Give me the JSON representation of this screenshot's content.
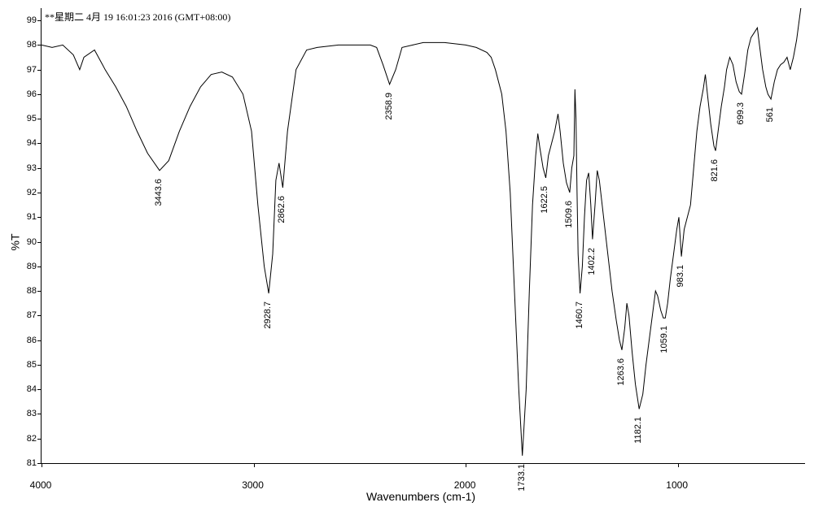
{
  "header": "**星期二 4月 19 16:01:23 2016 (GMT+08:00)",
  "ylabel": "%T",
  "xlabel": "Wavenumbers (cm-1)",
  "chart": {
    "type": "line",
    "xlim": [
      4000,
      400
    ],
    "ylim": [
      81,
      99.5
    ],
    "xticks": [
      4000,
      3000,
      2000,
      1000
    ],
    "yticks": [
      81,
      82,
      83,
      84,
      85,
      86,
      87,
      88,
      89,
      90,
      91,
      92,
      93,
      94,
      95,
      96,
      97,
      98,
      99
    ],
    "line_color": "#000000",
    "background_color": "#ffffff",
    "peaks": [
      {
        "wn": 3443.6,
        "t": 92.9
      },
      {
        "wn": 2928.7,
        "t": 87.9
      },
      {
        "wn": 2862.6,
        "t": 92.2
      },
      {
        "wn": 2358.9,
        "t": 96.4
      },
      {
        "wn": 1733.1,
        "t": 81.3
      },
      {
        "wn": 1622.5,
        "t": 92.6
      },
      {
        "wn": 1509.6,
        "t": 92.0
      },
      {
        "wn": 1460.7,
        "t": 87.9
      },
      {
        "wn": 1402.2,
        "t": 90.1
      },
      {
        "wn": 1263.6,
        "t": 85.6
      },
      {
        "wn": 1182.1,
        "t": 83.2
      },
      {
        "wn": 1059.1,
        "t": 86.9
      },
      {
        "wn": 983.1,
        "t": 89.4
      },
      {
        "wn": 821.6,
        "t": 93.7
      },
      {
        "wn": 699.3,
        "t": 96.0
      },
      {
        "wn": 561.0,
        "t": 95.8
      }
    ],
    "spectrum_points": [
      [
        4000,
        98.0
      ],
      [
        3950,
        97.9
      ],
      [
        3900,
        98.0
      ],
      [
        3850,
        97.6
      ],
      [
        3820,
        97.0
      ],
      [
        3800,
        97.5
      ],
      [
        3750,
        97.8
      ],
      [
        3700,
        97.0
      ],
      [
        3650,
        96.3
      ],
      [
        3600,
        95.5
      ],
      [
        3550,
        94.5
      ],
      [
        3500,
        93.6
      ],
      [
        3443.6,
        92.9
      ],
      [
        3400,
        93.3
      ],
      [
        3350,
        94.5
      ],
      [
        3300,
        95.5
      ],
      [
        3250,
        96.3
      ],
      [
        3200,
        96.8
      ],
      [
        3150,
        96.9
      ],
      [
        3100,
        96.7
      ],
      [
        3050,
        96.0
      ],
      [
        3010,
        94.5
      ],
      [
        2980,
        91.5
      ],
      [
        2950,
        89.0
      ],
      [
        2928.7,
        87.9
      ],
      [
        2910,
        89.5
      ],
      [
        2895,
        92.5
      ],
      [
        2880,
        93.2
      ],
      [
        2862.6,
        92.2
      ],
      [
        2840,
        94.5
      ],
      [
        2800,
        97.0
      ],
      [
        2750,
        97.8
      ],
      [
        2700,
        97.9
      ],
      [
        2600,
        98.0
      ],
      [
        2500,
        98.0
      ],
      [
        2450,
        98.0
      ],
      [
        2420,
        97.9
      ],
      [
        2390,
        97.2
      ],
      [
        2358.9,
        96.4
      ],
      [
        2330,
        97.0
      ],
      [
        2300,
        97.9
      ],
      [
        2250,
        98.0
      ],
      [
        2200,
        98.1
      ],
      [
        2100,
        98.1
      ],
      [
        2000,
        98.0
      ],
      [
        1950,
        97.9
      ],
      [
        1900,
        97.7
      ],
      [
        1880,
        97.5
      ],
      [
        1860,
        97.0
      ],
      [
        1830,
        96.0
      ],
      [
        1810,
        94.5
      ],
      [
        1790,
        92.0
      ],
      [
        1770,
        88.0
      ],
      [
        1750,
        84.0
      ],
      [
        1733.1,
        81.3
      ],
      [
        1715,
        84.0
      ],
      [
        1700,
        88.0
      ],
      [
        1685,
        91.5
      ],
      [
        1670,
        93.5
      ],
      [
        1660,
        94.4
      ],
      [
        1650,
        93.8
      ],
      [
        1635,
        93.0
      ],
      [
        1622.5,
        92.6
      ],
      [
        1610,
        93.5
      ],
      [
        1595,
        94.0
      ],
      [
        1580,
        94.5
      ],
      [
        1565,
        95.2
      ],
      [
        1555,
        94.5
      ],
      [
        1540,
        93.2
      ],
      [
        1525,
        92.4
      ],
      [
        1509.6,
        92.0
      ],
      [
        1500,
        93.0
      ],
      [
        1490,
        93.5
      ],
      [
        1485,
        96.2
      ],
      [
        1480,
        95.0
      ],
      [
        1475,
        92.0
      ],
      [
        1470,
        89.5
      ],
      [
        1460.7,
        87.9
      ],
      [
        1450,
        89.0
      ],
      [
        1440,
        91.0
      ],
      [
        1430,
        92.5
      ],
      [
        1420,
        92.8
      ],
      [
        1410,
        91.5
      ],
      [
        1402.2,
        90.1
      ],
      [
        1390,
        91.5
      ],
      [
        1380,
        92.9
      ],
      [
        1370,
        92.5
      ],
      [
        1350,
        91.0
      ],
      [
        1330,
        89.5
      ],
      [
        1310,
        88.0
      ],
      [
        1290,
        86.8
      ],
      [
        1275,
        86.0
      ],
      [
        1263.6,
        85.6
      ],
      [
        1250,
        86.5
      ],
      [
        1240,
        87.5
      ],
      [
        1230,
        87.0
      ],
      [
        1215,
        85.5
      ],
      [
        1200,
        84.2
      ],
      [
        1182.1,
        83.2
      ],
      [
        1165,
        83.8
      ],
      [
        1150,
        85.0
      ],
      [
        1135,
        86.0
      ],
      [
        1120,
        87.0
      ],
      [
        1105,
        88.0
      ],
      [
        1095,
        87.8
      ],
      [
        1080,
        87.2
      ],
      [
        1068,
        86.9
      ],
      [
        1059.1,
        86.9
      ],
      [
        1048,
        87.5
      ],
      [
        1035,
        88.5
      ],
      [
        1020,
        89.5
      ],
      [
        1005,
        90.5
      ],
      [
        995,
        91.0
      ],
      [
        983.1,
        89.4
      ],
      [
        970,
        90.5
      ],
      [
        955,
        91.0
      ],
      [
        940,
        91.5
      ],
      [
        925,
        93.0
      ],
      [
        910,
        94.5
      ],
      [
        895,
        95.5
      ],
      [
        880,
        96.2
      ],
      [
        870,
        96.8
      ],
      [
        860,
        96.0
      ],
      [
        845,
        94.8
      ],
      [
        830,
        93.9
      ],
      [
        821.6,
        93.7
      ],
      [
        810,
        94.5
      ],
      [
        795,
        95.5
      ],
      [
        780,
        96.3
      ],
      [
        770,
        97.0
      ],
      [
        755,
        97.5
      ],
      [
        740,
        97.2
      ],
      [
        725,
        96.5
      ],
      [
        710,
        96.1
      ],
      [
        699.3,
        96.0
      ],
      [
        685,
        96.8
      ],
      [
        670,
        97.8
      ],
      [
        655,
        98.3
      ],
      [
        640,
        98.5
      ],
      [
        625,
        98.7
      ],
      [
        615,
        98.0
      ],
      [
        600,
        97.0
      ],
      [
        585,
        96.3
      ],
      [
        575,
        96.0
      ],
      [
        561.0,
        95.8
      ],
      [
        545,
        96.5
      ],
      [
        530,
        97.0
      ],
      [
        515,
        97.2
      ],
      [
        500,
        97.3
      ],
      [
        485,
        97.5
      ],
      [
        470,
        97.0
      ],
      [
        455,
        97.5
      ],
      [
        440,
        98.2
      ],
      [
        420,
        99.5
      ],
      [
        400,
        99.8
      ]
    ]
  }
}
